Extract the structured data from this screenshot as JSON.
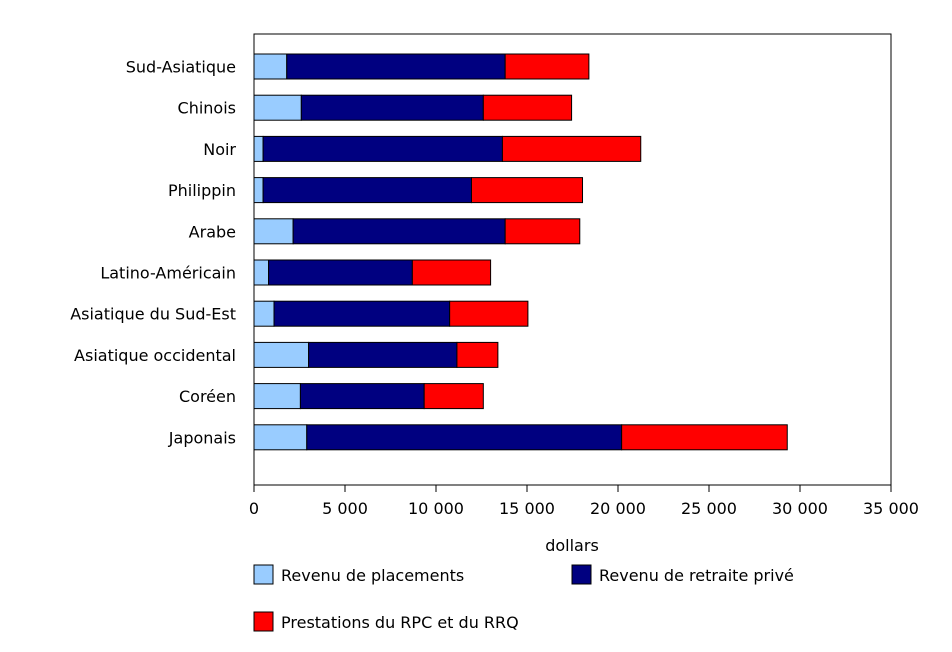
{
  "chart_data": {
    "type": "bar",
    "orientation": "horizontal",
    "stacked": true,
    "title": "",
    "xlabel": "dollars",
    "ylabel": "",
    "xlim": [
      0,
      35000
    ],
    "x_ticks": [
      0,
      5000,
      10000,
      15000,
      20000,
      25000,
      30000,
      35000
    ],
    "x_tick_labels": [
      "0",
      "5 000",
      "10 000",
      "15 000",
      "20 000",
      "25 000",
      "30 000",
      "35 000"
    ],
    "grid": false,
    "legend_position": "bottom",
    "categories": [
      "Sud-Asiatique",
      "Chinois",
      "Noir",
      "Philippin",
      "Arabe",
      "Latino-Américain",
      "Asiatique du Sud-Est",
      "Asiatique occidental",
      "Coréen",
      "Japonais"
    ],
    "series": [
      {
        "name": "Revenu de placements",
        "color": "#99ccff",
        "values": [
          1800,
          2600,
          500,
          500,
          2150,
          800,
          1100,
          3000,
          2550,
          2900
        ]
      },
      {
        "name": "Revenu de retraite privé",
        "color": "#000080",
        "values": [
          12000,
          10000,
          13150,
          11450,
          11650,
          7900,
          9650,
          8150,
          6800,
          17300
        ]
      },
      {
        "name": "Prestations du RPC et du RRQ",
        "color": "#ff0000",
        "values": [
          4600,
          4850,
          7600,
          6100,
          4100,
          4300,
          4300,
          2250,
          3250,
          9100
        ]
      }
    ]
  }
}
